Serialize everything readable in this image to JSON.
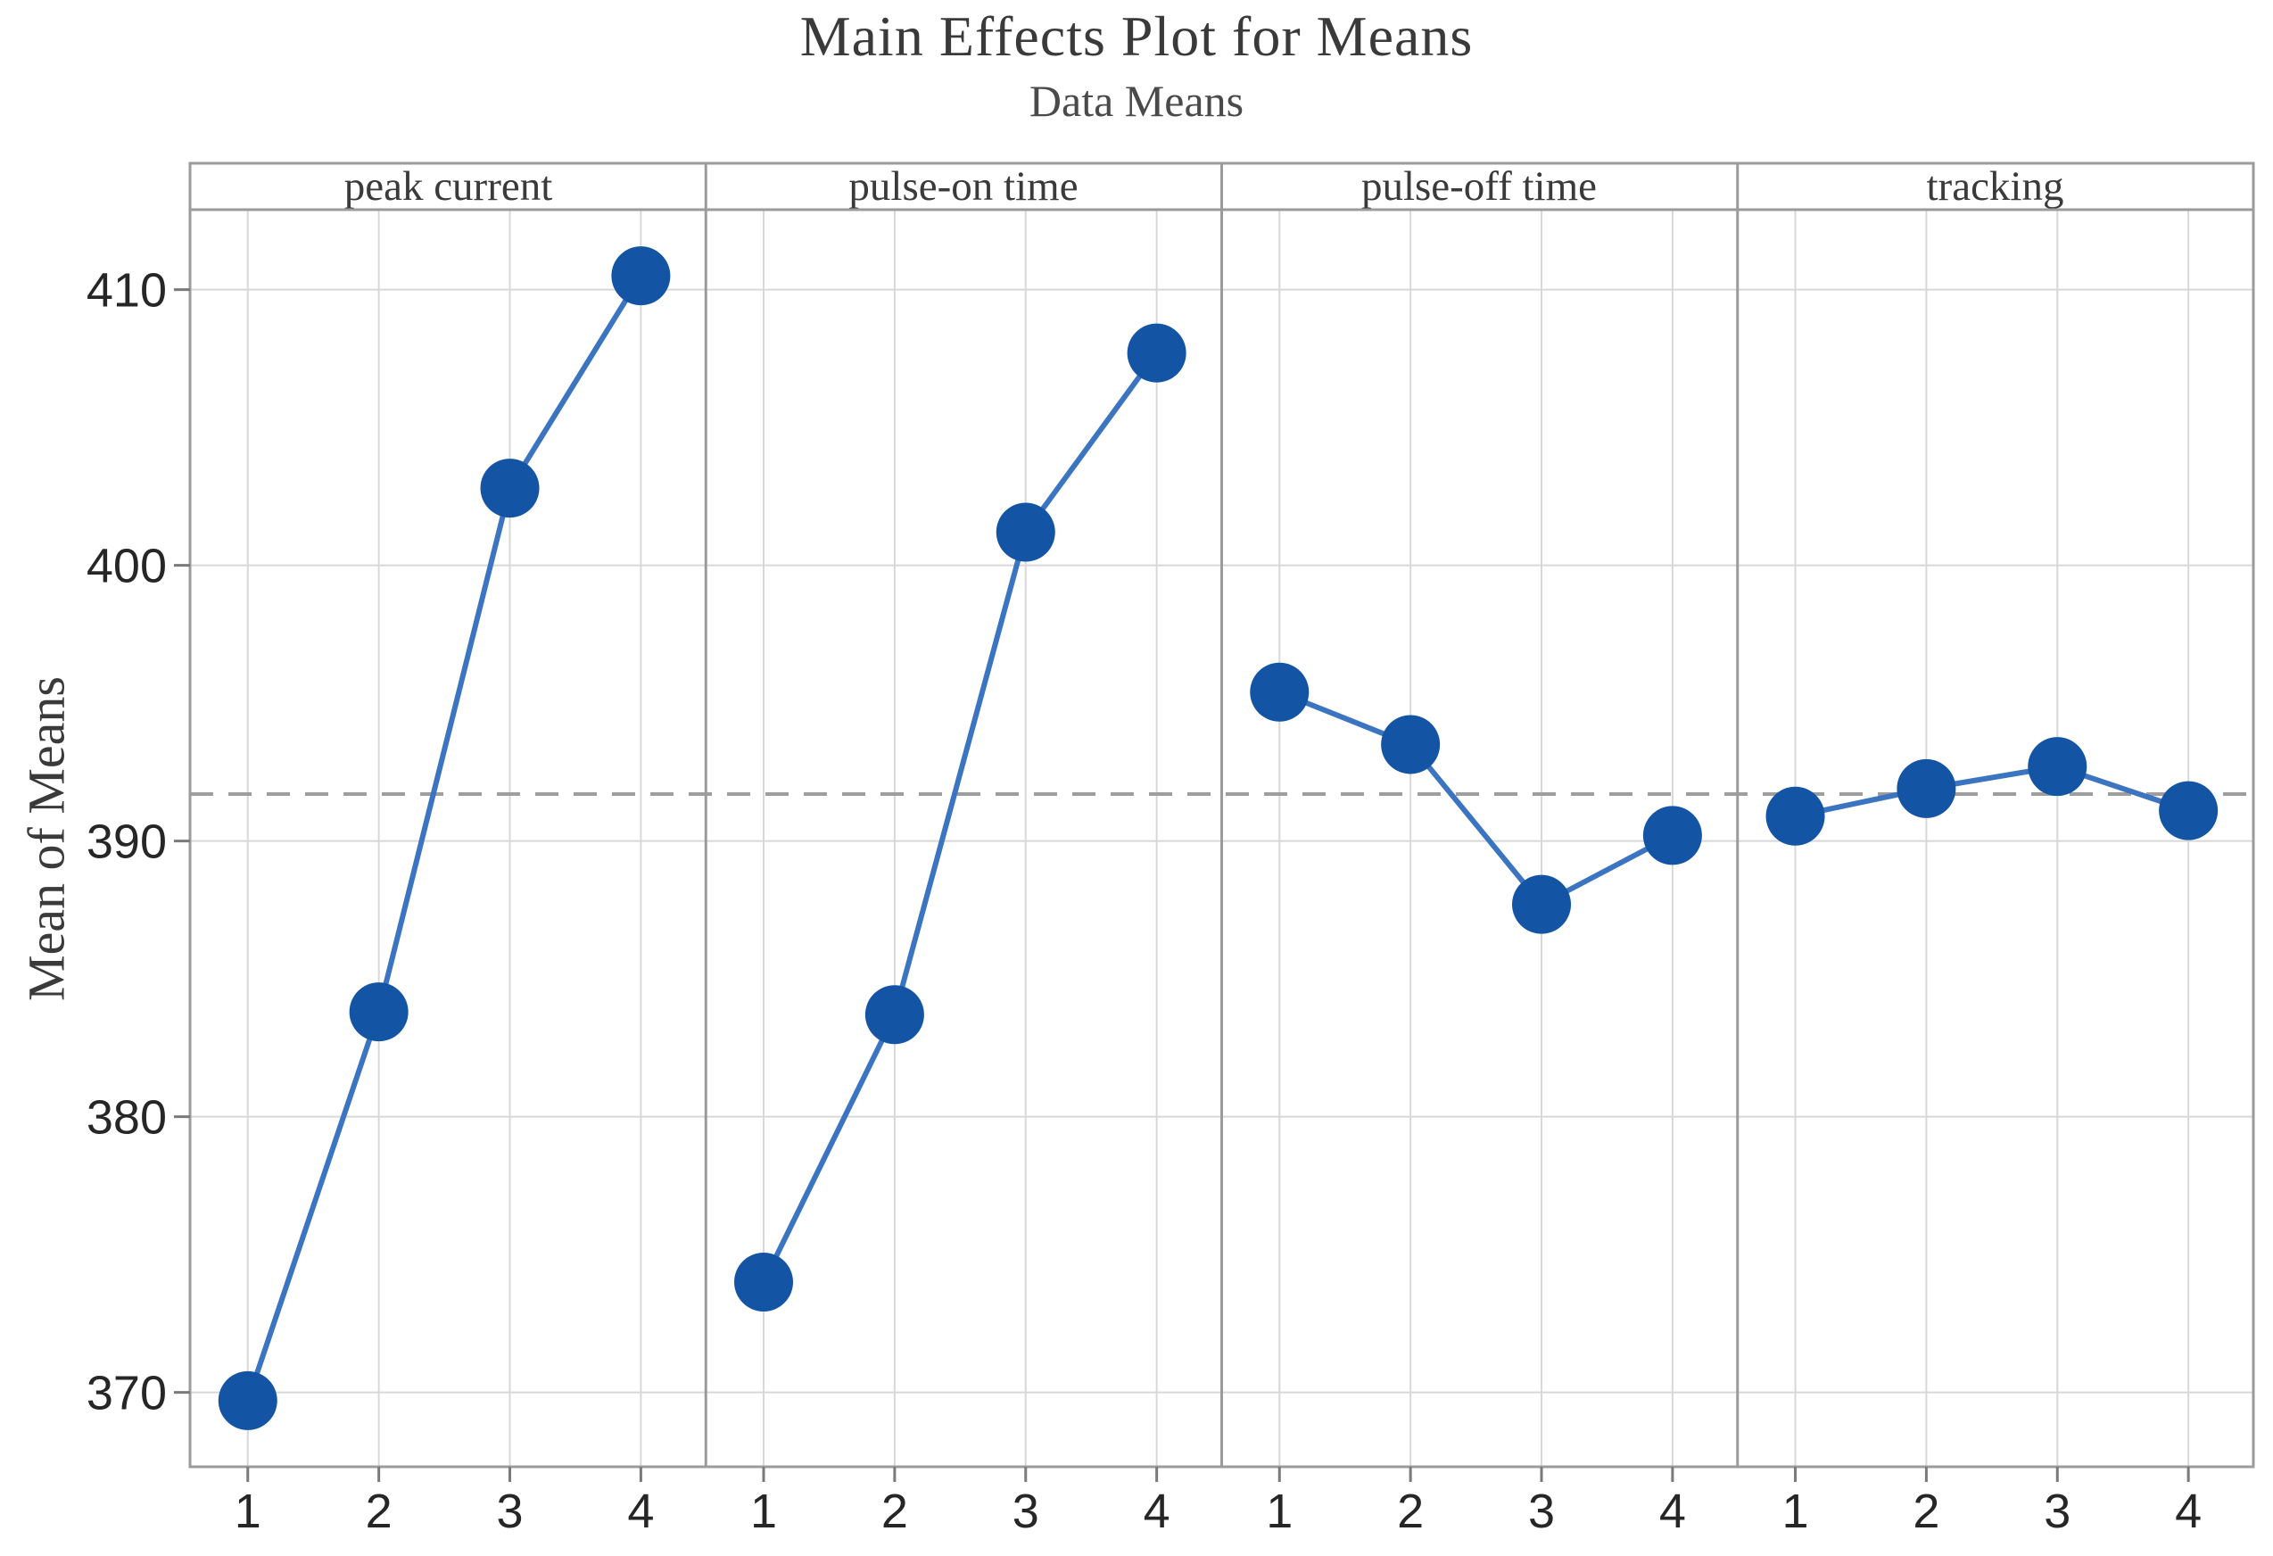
{
  "title": "Main Effects Plot for Means",
  "subtitle": "Data Means",
  "chart_data": {
    "type": "line",
    "title": "Main Effects Plot for Means",
    "subtitle": "Data Means",
    "ylabel": "Mean of Means",
    "xlabel": "",
    "layout": "4 side-by-side panels sharing one y axis, grid on, no legend",
    "panels": [
      {
        "label": "peak current",
        "x": [
          1,
          2,
          3,
          4
        ],
        "values": [
          369.7,
          383.8,
          402.8,
          410.5
        ]
      },
      {
        "label": "pulse-on time",
        "x": [
          1,
          2,
          3,
          4
        ],
        "values": [
          374.0,
          383.7,
          401.2,
          407.7
        ]
      },
      {
        "label": "pulse-off time",
        "x": [
          1,
          2,
          3,
          4
        ],
        "values": [
          395.4,
          393.5,
          387.7,
          390.2
        ]
      },
      {
        "label": "tracking",
        "x": [
          1,
          2,
          3,
          4
        ],
        "values": [
          390.9,
          391.9,
          392.7,
          391.1
        ]
      }
    ],
    "reference_line_grand_mean": 391.7,
    "y_ticks": [
      370,
      380,
      390,
      400,
      410
    ],
    "x_ticks": [
      "1",
      "2",
      "3",
      "4"
    ],
    "ylim": [
      367.3,
      412.9
    ],
    "colors": {
      "marker": "#1355a4",
      "line": "#3b74c0",
      "grid": "#d8d8d8",
      "border": "#9b9b9b",
      "reference": "#9e9e9e",
      "tick_mark": "#7a7a7a",
      "tick_text": "#262626",
      "title_text": "#3a3a3a"
    }
  }
}
